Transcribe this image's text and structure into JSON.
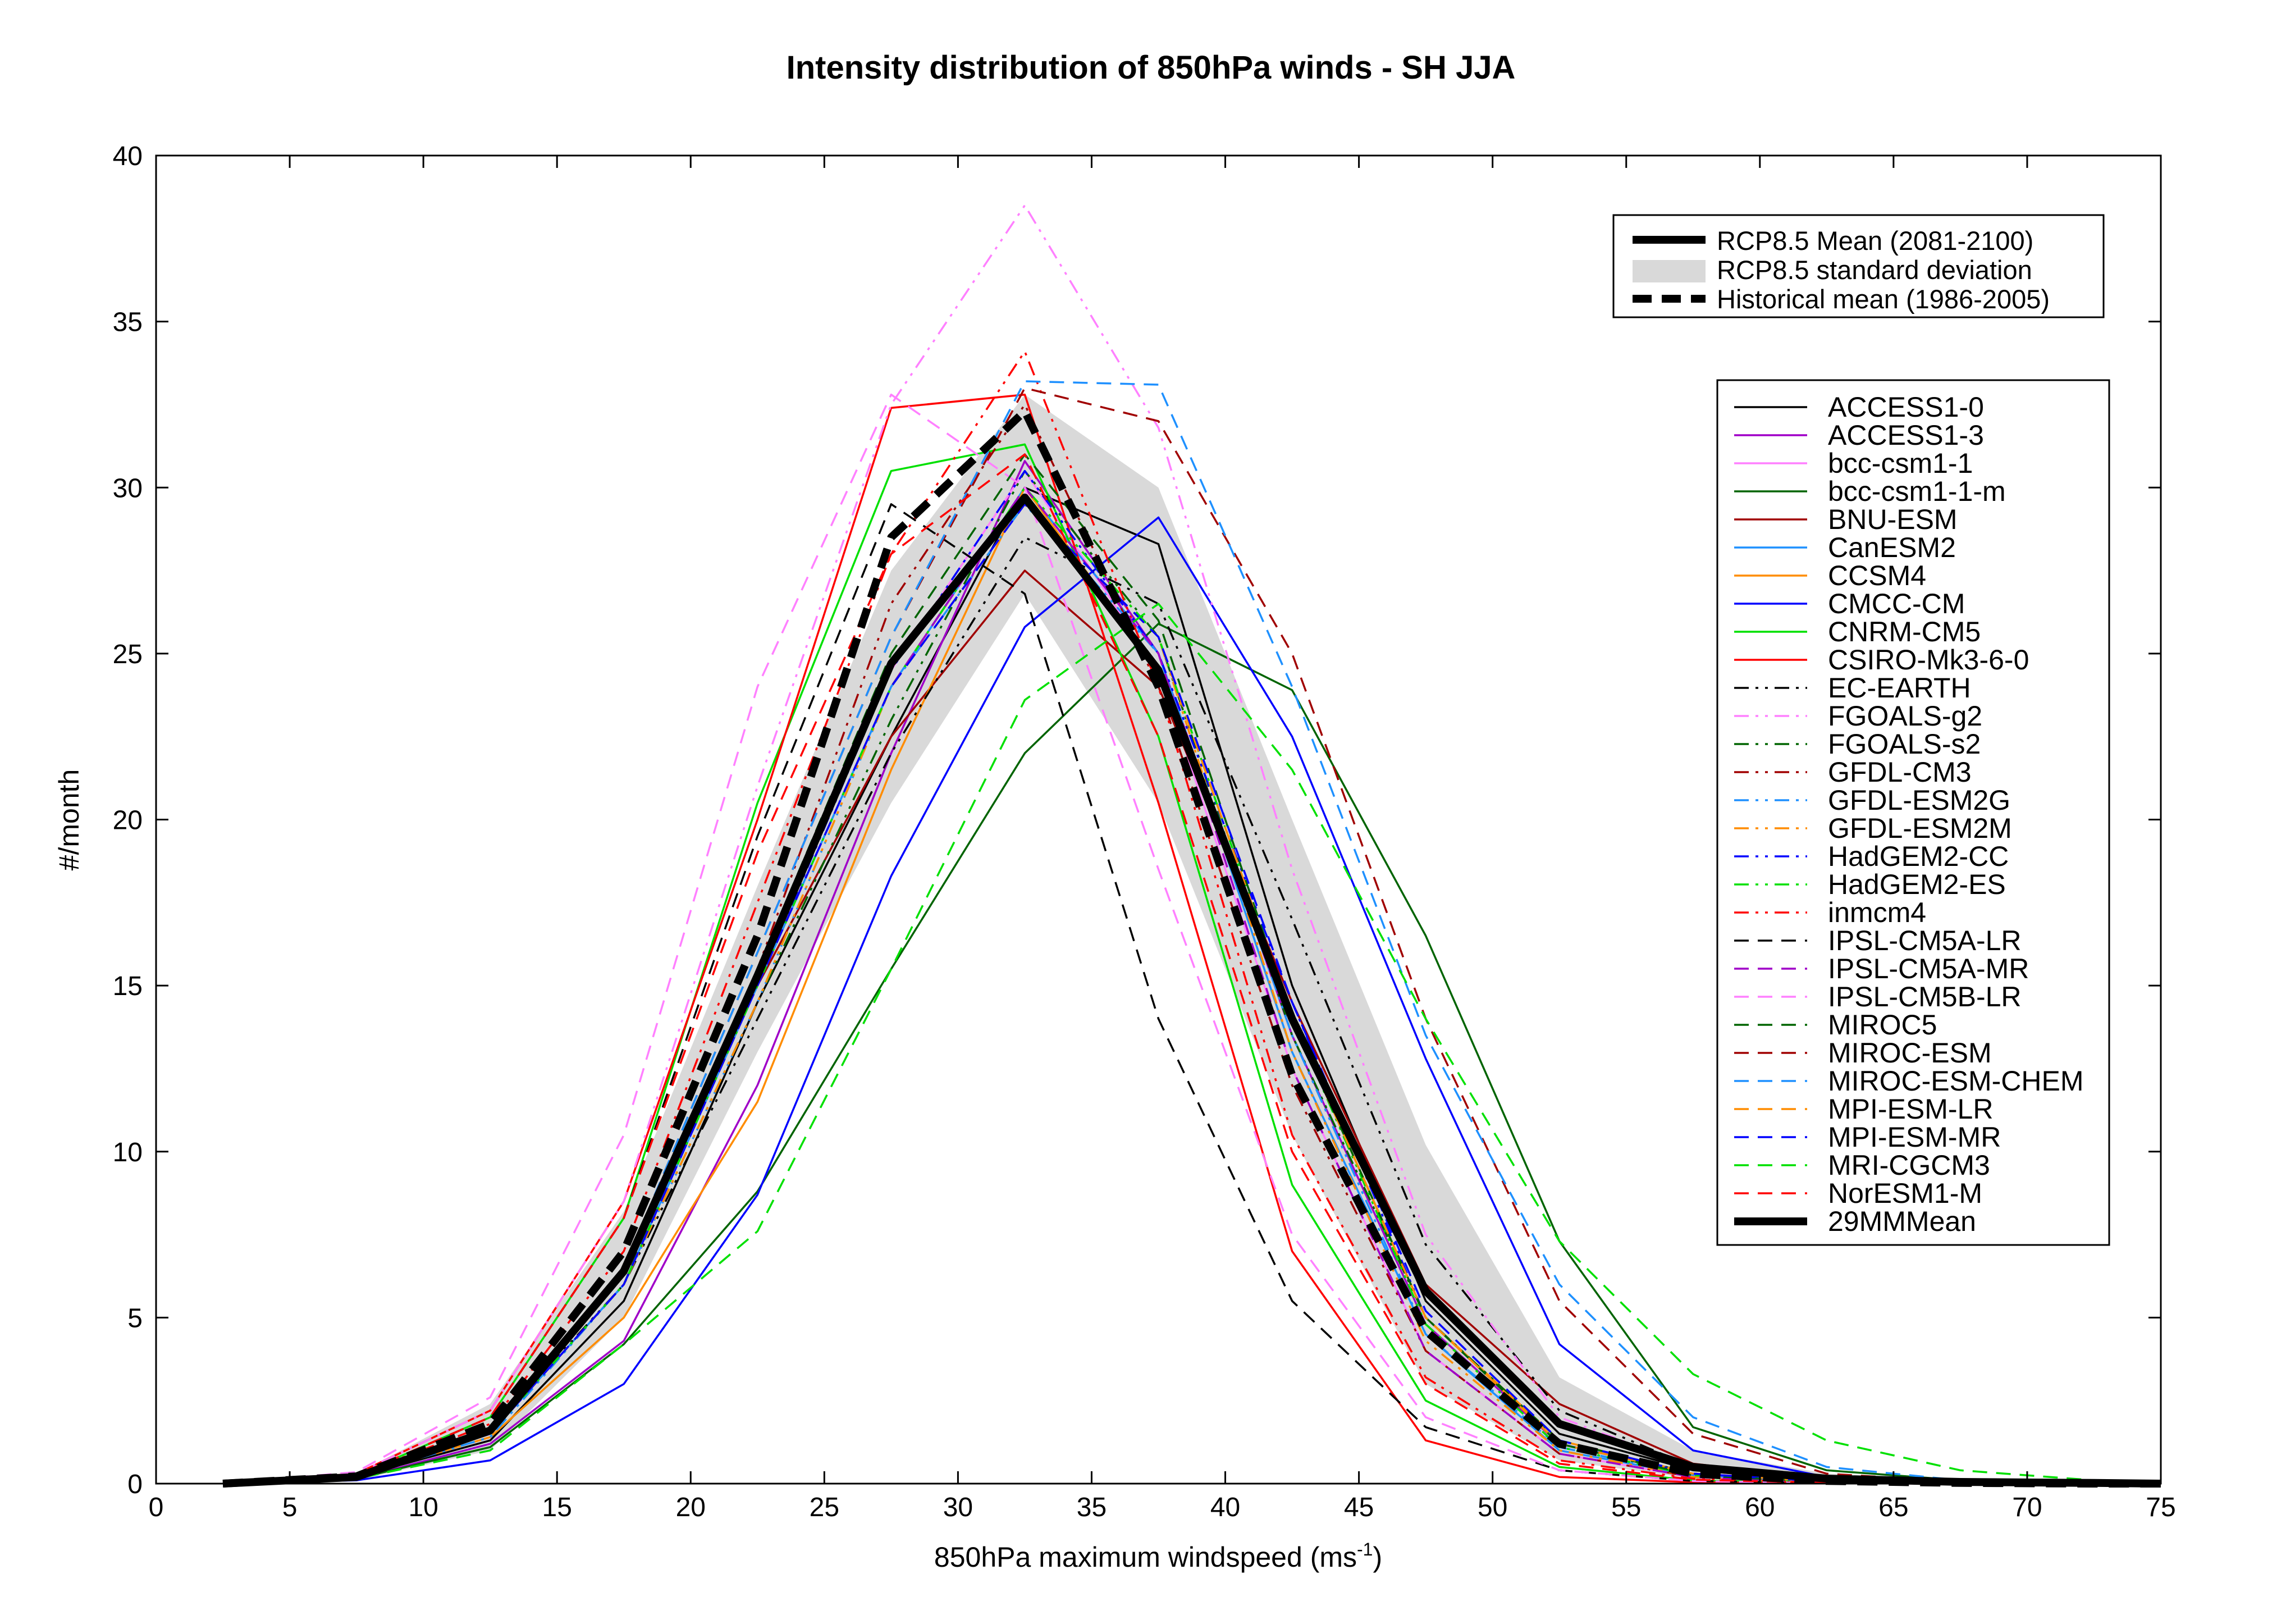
{
  "chart_data": {
    "type": "line",
    "title": "Intensity distribution of 850hPa winds - SH JJA",
    "xlabel_main": "850hPa maximum windspeed (ms",
    "xlabel_sup": "-1",
    "xlabel_end": ")",
    "ylabel": "#/month",
    "xlim": [
      0,
      75
    ],
    "ylim": [
      0,
      40
    ],
    "x_ticks": [
      "0",
      "5",
      "10",
      "15",
      "20",
      "25",
      "30",
      "35",
      "40",
      "45",
      "50",
      "55",
      "60",
      "65",
      "70",
      "75"
    ],
    "y_ticks": [
      "0",
      "5",
      "10",
      "15",
      "20",
      "25",
      "30",
      "35",
      "40"
    ],
    "x": [
      2.5,
      7.5,
      12.5,
      17.5,
      22.5,
      27.5,
      32.5,
      37.5,
      42.5,
      47.5,
      52.5,
      57.5,
      62.5,
      67.5,
      72.5,
      75
    ],
    "legend_top": [
      {
        "label": "RCP8.5 Mean (2081-2100)",
        "style": "solid-thick"
      },
      {
        "label": "RCP8.5 standard deviation",
        "style": "band"
      },
      {
        "label": "Historical mean (1986-2005)",
        "style": "dashed-thick"
      }
    ],
    "rcp85_std_band": {
      "lower": [
        0,
        0.1,
        1.0,
        5.0,
        13.0,
        20.5,
        26.8,
        20.5,
        10.5,
        3.0,
        0.7,
        0.15,
        0.05,
        0,
        0,
        0
      ],
      "upper": [
        0.05,
        0.3,
        2.4,
        8.2,
        18.0,
        27.5,
        32.8,
        30.0,
        20.0,
        10.2,
        3.2,
        1.0,
        0.3,
        0.1,
        0.03,
        0
      ]
    },
    "rcp85_mean": [
      0,
      0.2,
      1.6,
      6.4,
      15.3,
      24.7,
      29.7,
      24.5,
      14.0,
      5.8,
      1.8,
      0.5,
      0.15,
      0.05,
      0.02,
      0
    ],
    "historical_mean": [
      0,
      0.22,
      1.8,
      7.0,
      16.5,
      28.5,
      32.3,
      24.0,
      12.3,
      4.6,
      1.2,
      0.3,
      0.08,
      0.02,
      0,
      0
    ],
    "series": [
      {
        "name": "ACCESS1-0",
        "color": "#000000",
        "dash": "solid",
        "values": [
          0,
          0.2,
          1.3,
          5.5,
          14.5,
          22.5,
          30.0,
          28.3,
          15.0,
          5.5,
          1.5,
          0.4,
          0.1,
          0.02,
          0,
          0
        ]
      },
      {
        "name": "ACCESS1-3",
        "color": "#a000c8",
        "dash": "solid",
        "values": [
          0,
          0.15,
          1.2,
          4.3,
          12.0,
          22.0,
          30.8,
          25.0,
          13.5,
          4.8,
          1.2,
          0.3,
          0.08,
          0.02,
          0,
          0
        ]
      },
      {
        "name": "bcc-csm1-1",
        "color": "#ff80ff",
        "dash": "solid",
        "values": [
          0,
          0.2,
          1.5,
          6.5,
          15.5,
          24.5,
          30.5,
          24.5,
          12.5,
          4.0,
          0.9,
          0.2,
          0.05,
          0.01,
          0,
          0
        ]
      },
      {
        "name": "bcc-csm1-1-m",
        "color": "#006400",
        "dash": "solid",
        "values": [
          0,
          0.15,
          1.1,
          4.2,
          8.8,
          15.5,
          22.0,
          25.9,
          23.9,
          16.5,
          7.3,
          1.7,
          0.4,
          0.1,
          0.02,
          0
        ]
      },
      {
        "name": "BNU-ESM",
        "color": "#a00000",
        "dash": "solid",
        "values": [
          0,
          0.2,
          1.6,
          6.5,
          15.0,
          22.5,
          27.5,
          24.0,
          14.5,
          6.0,
          2.4,
          0.6,
          0.15,
          0.03,
          0,
          0
        ]
      },
      {
        "name": "CanESM2",
        "color": "#1e90ff",
        "dash": "solid",
        "values": [
          0,
          0.2,
          1.5,
          6.0,
          15.0,
          24.0,
          30.0,
          25.0,
          13.0,
          4.5,
          1.0,
          0.25,
          0.05,
          0.01,
          0,
          0
        ]
      },
      {
        "name": "CCSM4",
        "color": "#ff8c00",
        "dash": "solid",
        "values": [
          0,
          0.2,
          1.4,
          5.0,
          11.5,
          21.5,
          30.0,
          24.5,
          14.0,
          5.0,
          1.3,
          0.3,
          0.06,
          0.01,
          0,
          0
        ]
      },
      {
        "name": "CMCC-CM",
        "color": "#0000ff",
        "dash": "solid",
        "values": [
          0,
          0.1,
          0.7,
          3.0,
          8.7,
          18.3,
          25.8,
          29.1,
          22.5,
          12.8,
          4.2,
          1.0,
          0.2,
          0.04,
          0,
          0
        ]
      },
      {
        "name": "CNRM-CM5",
        "color": "#00e000",
        "dash": "solid",
        "values": [
          0,
          0.25,
          2.0,
          8.0,
          20.5,
          30.5,
          31.3,
          22.5,
          9.0,
          2.5,
          0.5,
          0.1,
          0.02,
          0,
          0,
          0
        ]
      },
      {
        "name": "CSIRO-Mk3-6-0",
        "color": "#ff0000",
        "dash": "solid",
        "values": [
          0,
          0.3,
          2.2,
          8.5,
          20.0,
          32.4,
          32.8,
          20.5,
          7.0,
          1.3,
          0.2,
          0.04,
          0.01,
          0,
          0,
          0
        ]
      },
      {
        "name": "EC-EARTH",
        "color": "#000000",
        "dash": "dashdotdot",
        "values": [
          0,
          0.2,
          1.6,
          6.0,
          14.0,
          22.0,
          28.5,
          26.5,
          17.0,
          7.2,
          2.2,
          0.5,
          0.1,
          0.02,
          0,
          0
        ]
      },
      {
        "name": "FGOALS-g2",
        "color": "#ff80ff",
        "dash": "dashdotdot",
        "values": [
          0,
          0.3,
          2.2,
          8.5,
          21.0,
          32.5,
          38.5,
          31.8,
          18.5,
          7.5,
          2.0,
          0.5,
          0.1,
          0.02,
          0,
          0
        ]
      },
      {
        "name": "FGOALS-s2",
        "color": "#006400",
        "dash": "dashdotdot",
        "values": [
          0,
          0.2,
          1.5,
          6.0,
          14.5,
          23.0,
          30.5,
          25.5,
          13.5,
          5.0,
          1.3,
          0.3,
          0.06,
          0.01,
          0,
          0
        ]
      },
      {
        "name": "GFDL-CM3",
        "color": "#a00000",
        "dash": "dashdotdot",
        "values": [
          0,
          0.2,
          1.6,
          6.5,
          15.5,
          26.5,
          32.5,
          24.0,
          12.0,
          4.0,
          0.9,
          0.2,
          0.04,
          0,
          0,
          0
        ]
      },
      {
        "name": "GFDL-ESM2G",
        "color": "#1e90ff",
        "dash": "dashdotdot",
        "values": [
          0,
          0.2,
          1.4,
          6.0,
          14.5,
          24.0,
          29.5,
          25.0,
          13.5,
          4.5,
          1.1,
          0.25,
          0.05,
          0.01,
          0,
          0
        ]
      },
      {
        "name": "GFDL-ESM2M",
        "color": "#ff8c00",
        "dash": "dashdotdot",
        "values": [
          0,
          0.2,
          1.5,
          6.0,
          14.5,
          24.0,
          30.0,
          25.5,
          13.0,
          4.3,
          1.0,
          0.2,
          0.04,
          0,
          0,
          0
        ]
      },
      {
        "name": "HadGEM2-CC",
        "color": "#0000ff",
        "dash": "dashdotdot",
        "values": [
          0,
          0.2,
          1.5,
          6.0,
          15.0,
          24.5,
          30.5,
          25.0,
          14.5,
          5.0,
          1.2,
          0.3,
          0.06,
          0.01,
          0,
          0
        ]
      },
      {
        "name": "HadGEM2-ES",
        "color": "#00e000",
        "dash": "dashdotdot",
        "values": [
          0,
          0.2,
          1.5,
          6.0,
          15.0,
          24.0,
          30.0,
          25.5,
          14.0,
          4.8,
          1.1,
          0.25,
          0.05,
          0.01,
          0,
          0
        ]
      },
      {
        "name": "inmcm4",
        "color": "#ff0000",
        "dash": "dashdotdot",
        "values": [
          0,
          0.25,
          1.8,
          7.0,
          17.5,
          28.0,
          34.1,
          24.0,
          10.5,
          3.2,
          0.7,
          0.15,
          0.03,
          0,
          0,
          0
        ]
      },
      {
        "name": "IPSL-CM5A-LR",
        "color": "#000000",
        "dash": "dashed",
        "values": [
          0,
          0.25,
          2.0,
          8.0,
          19.5,
          29.5,
          26.8,
          14.0,
          5.5,
          1.7,
          0.4,
          0.08,
          0.02,
          0,
          0,
          0
        ]
      },
      {
        "name": "IPSL-CM5A-MR",
        "color": "#a000c8",
        "dash": "dashed",
        "values": [
          0,
          0.2,
          1.5,
          6.0,
          15.0,
          24.0,
          30.0,
          25.0,
          12.5,
          4.0,
          0.9,
          0.2,
          0.04,
          0,
          0,
          0
        ]
      },
      {
        "name": "IPSL-CM5B-LR",
        "color": "#ff80ff",
        "dash": "dashed",
        "values": [
          0,
          0.35,
          2.6,
          10.5,
          24.0,
          32.8,
          30.0,
          18.5,
          7.5,
          2.0,
          0.4,
          0.08,
          0.01,
          0,
          0,
          0
        ]
      },
      {
        "name": "MIROC5",
        "color": "#006400",
        "dash": "dashed",
        "values": [
          0,
          0.2,
          1.5,
          6.0,
          15.5,
          25.0,
          31.0,
          26.0,
          14.0,
          5.0,
          1.2,
          0.25,
          0.05,
          0.01,
          0,
          0
        ]
      },
      {
        "name": "MIROC-ESM",
        "color": "#a00000",
        "dash": "dashed",
        "values": [
          0,
          0.2,
          1.5,
          6.5,
          16.0,
          25.5,
          33.0,
          32.0,
          25.0,
          14.0,
          5.5,
          1.5,
          0.3,
          0.06,
          0.01,
          0
        ]
      },
      {
        "name": "MIROC-ESM-CHEM",
        "color": "#1e90ff",
        "dash": "dashed",
        "values": [
          0,
          0.2,
          1.5,
          6.5,
          16.0,
          25.5,
          33.2,
          33.1,
          24.0,
          13.5,
          6.0,
          2.0,
          0.5,
          0.1,
          0.02,
          0
        ]
      },
      {
        "name": "MPI-ESM-LR",
        "color": "#ff8c00",
        "dash": "dashed",
        "values": [
          0,
          0.2,
          1.5,
          6.0,
          15.0,
          24.0,
          29.5,
          25.5,
          14.0,
          5.0,
          1.2,
          0.3,
          0.06,
          0.01,
          0,
          0
        ]
      },
      {
        "name": "MPI-ESM-MR",
        "color": "#0000ff",
        "dash": "dashed",
        "values": [
          0,
          0.2,
          1.5,
          6.0,
          15.0,
          24.0,
          29.5,
          25.5,
          14.5,
          5.2,
          1.3,
          0.3,
          0.06,
          0.01,
          0,
          0
        ]
      },
      {
        "name": "MRI-CGCM3",
        "color": "#00e000",
        "dash": "dashed",
        "values": [
          0,
          0.15,
          1.0,
          4.2,
          7.6,
          15.5,
          23.6,
          26.5,
          21.5,
          14.0,
          7.3,
          3.3,
          1.3,
          0.4,
          0.1,
          0
        ]
      },
      {
        "name": "NorESM1-M",
        "color": "#ff0000",
        "dash": "dashed",
        "values": [
          0,
          0.25,
          2.0,
          8.0,
          19.0,
          28.0,
          31.0,
          22.5,
          10.0,
          3.0,
          0.6,
          0.12,
          0.02,
          0,
          0,
          0
        ]
      }
    ],
    "legend_models_final": {
      "label": "29MMMean",
      "style": "solid-thick"
    },
    "grid": false,
    "legend_placement": "top-right"
  }
}
